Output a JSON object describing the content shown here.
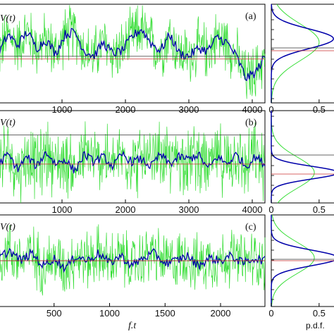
{
  "figure": {
    "xlabel_main": "f.t",
    "xlabel_pdf": "p.d.f."
  },
  "chart_data": [
    {
      "type": "line",
      "panel_label": "(a)",
      "ylabel": "V(t)",
      "xlim": [
        0,
        4200
      ],
      "xticks": [
        1000,
        2000,
        3000,
        4000
      ],
      "xtick_labels": [
        "1000",
        "2000",
        "3000",
        "4000"
      ],
      "baseline": 0.0,
      "mean_line": 0.1,
      "series": [
        {
          "color": "#33dd33",
          "kind": "raw"
        },
        {
          "color": "#0000aa",
          "kind": "smoothed",
          "x": [
            0,
            150,
            300,
            450,
            600,
            750,
            900,
            1050,
            1200,
            1350,
            1500,
            1650,
            1800,
            1950,
            2100,
            2250,
            2400,
            2550,
            2700,
            2850,
            3000,
            3150,
            3300,
            3450,
            3600,
            3750,
            3900,
            4050,
            4200
          ],
          "values": [
            0.2,
            0.9,
            0.5,
            1.0,
            0.4,
            0.7,
            0.2,
            0.9,
            1.0,
            0.3,
            0.1,
            0.6,
            0.2,
            0.3,
            0.8,
            1.1,
            0.6,
            0.3,
            0.9,
            0.2,
            0.1,
            0.4,
            0.3,
            0.8,
            0.6,
            0.1,
            -0.7,
            -0.5,
            0.1
          ]
        }
      ]
    },
    {
      "type": "line",
      "panel_label": "(b)",
      "ylabel": "V(t)",
      "xlim": [
        0,
        4200
      ],
      "xticks": [
        1000,
        2000,
        3000,
        4000
      ],
      "xtick_labels": [
        "1000",
        "2000",
        "3000",
        "4000"
      ],
      "baseline": -0.2,
      "mean_line": 1.0,
      "series": [
        {
          "color": "#33dd33",
          "kind": "raw"
        },
        {
          "color": "#0000aa",
          "kind": "smoothed",
          "x": [
            0,
            150,
            300,
            450,
            600,
            750,
            900,
            1050,
            1200,
            1350,
            1500,
            1650,
            1800,
            1950,
            2100,
            2250,
            2400,
            2550,
            2700,
            2850,
            3000,
            3150,
            3300,
            3450,
            3600,
            3750,
            3900,
            4050,
            4200
          ],
          "values": [
            -0.2,
            0.2,
            -0.4,
            0.1,
            -0.3,
            0.3,
            -0.2,
            0.0,
            -0.5,
            0.2,
            -0.1,
            0.1,
            -0.3,
            0.2,
            -0.1,
            0.0,
            -0.3,
            0.2,
            -0.2,
            0.1,
            0.0,
            0.2,
            -0.4,
            0.1,
            -0.2,
            0.2,
            -0.3,
            0.1,
            -0.2
          ]
        }
      ]
    },
    {
      "type": "line",
      "panel_label": "(c)",
      "ylabel": "V(t)",
      "xlim": [
        0,
        2400
      ],
      "xticks": [
        500,
        1000,
        1500,
        2000
      ],
      "xtick_labels": [
        "500",
        "1000",
        "1500",
        "2000"
      ],
      "baseline": 0.0,
      "mean_line": 0.0,
      "series": [
        {
          "color": "#33dd33",
          "kind": "raw"
        },
        {
          "color": "#0000aa",
          "kind": "smoothed",
          "x": [
            0,
            100,
            200,
            300,
            400,
            500,
            600,
            700,
            800,
            900,
            1000,
            1100,
            1200,
            1300,
            1400,
            1500,
            1600,
            1700,
            1800,
            1900,
            2000,
            2100,
            2200,
            2300,
            2400
          ],
          "values": [
            0.1,
            0.4,
            0.0,
            0.3,
            -0.2,
            0.1,
            -0.3,
            0.2,
            0.0,
            0.3,
            -0.1,
            0.2,
            -0.2,
            0.1,
            0.3,
            -0.1,
            0.0,
            0.2,
            -0.2,
            0.1,
            0.0,
            0.2,
            -0.1,
            0.1,
            0.0
          ]
        }
      ]
    },
    {
      "type": "line",
      "panel_label": "pdf-a",
      "xlim": [
        0,
        0.7
      ],
      "xticks": [
        0,
        0.5
      ],
      "xtick_labels": [
        "0",
        "0.5"
      ],
      "series": [
        {
          "name": "raw",
          "color": "#33dd33"
        },
        {
          "name": "smoothed",
          "color": "#0000aa"
        }
      ]
    },
    {
      "type": "line",
      "panel_label": "pdf-b",
      "xlim": [
        0,
        0.7
      ],
      "xticks": [
        0,
        0.5
      ],
      "xtick_labels": [
        "0",
        "0.5"
      ]
    },
    {
      "type": "line",
      "panel_label": "pdf-c",
      "xlim": [
        0,
        0.7
      ],
      "xticks": [
        0,
        0.5
      ],
      "xtick_labels": [
        "0",
        "0.5"
      ]
    }
  ]
}
